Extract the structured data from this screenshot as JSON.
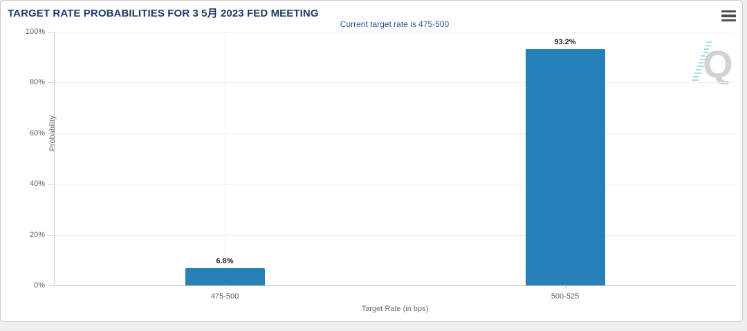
{
  "header": {
    "title": "TARGET RATE PROBABILITIES FOR 3 5月 2023 FED MEETING",
    "menu_icon": "hamburger-menu"
  },
  "chart_data": {
    "type": "bar",
    "title": "TARGET RATE PROBABILITIES FOR 3 5月 2023 FED MEETING",
    "subtitle": "Current target rate is 475-500",
    "categories": [
      "475-500",
      "500-525"
    ],
    "values": [
      6.8,
      93.2
    ],
    "value_labels": [
      "6.8%",
      "93.2%"
    ],
    "xlabel": "Target Rate (in bps)",
    "ylabel": "Probability",
    "ylim": [
      0,
      100
    ],
    "yticks": [
      0,
      20,
      40,
      60,
      80,
      100
    ],
    "ytick_labels": [
      "0%",
      "20%",
      "40%",
      "60%",
      "80%",
      "100%"
    ],
    "grid": true,
    "legend": false,
    "bar_color": "#2581b8",
    "watermark": "Q"
  },
  "colors": {
    "title": "#1e3a6d",
    "subtitle": "#2d4f9e",
    "bar": "#2581b8",
    "axis_text": "#5f5f5f",
    "gridline": "#efefef",
    "card_background": "#ffffff",
    "page_background": "#f0f0f0"
  }
}
